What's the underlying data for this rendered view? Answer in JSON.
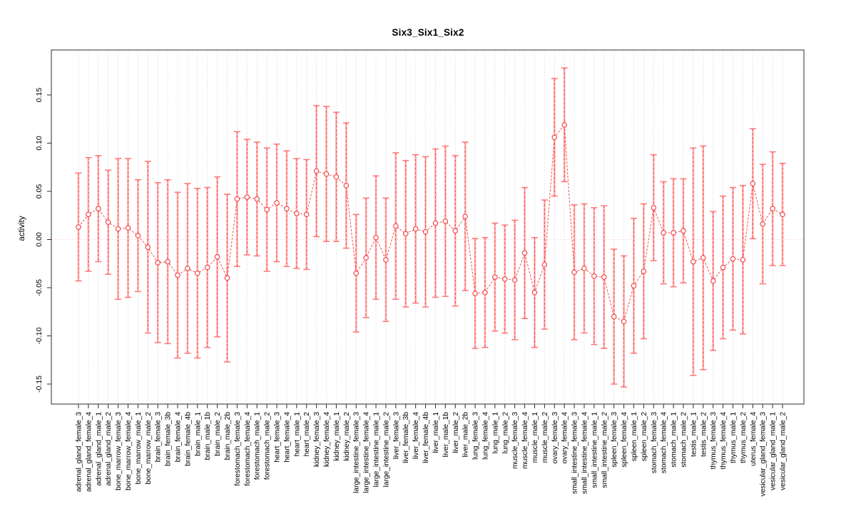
{
  "title": "Six3_Six1_Six2",
  "y_axis_label": "activity",
  "colors": {
    "series": "#f23b3b",
    "connector": "#f55050",
    "error_band": "#ffadad",
    "error_dash": "#f54040",
    "error_cap": "#ff7b7b",
    "zero_line": "#ffbdbd",
    "grid": "#cfcfcf",
    "frame": "#2e2e2e",
    "text": "#000000",
    "background": "#ffffff"
  },
  "chart_data": {
    "type": "line",
    "title": "Six3_Six1_Six2",
    "xlabel": "",
    "ylabel": "activity",
    "ylim": [
      -0.171,
      0.197
    ],
    "y_ticks": [
      -0.15,
      -0.1,
      -0.05,
      0.0,
      0.05,
      0.1,
      0.15
    ],
    "grid": "vertical-dotted",
    "zero_line_dotted": true,
    "point_style": "open-circle",
    "line_style": "dashed-connector",
    "error_bars": "mean ± half-width, whiskers with caps",
    "legend": "none",
    "columns": [
      "label",
      "activity",
      "error_halfwidth"
    ],
    "samples": [
      [
        "adrenal_gland_female_3",
        0.013,
        0.056
      ],
      [
        "adrenal_gland_female_4",
        0.026,
        0.059
      ],
      [
        "adrenal_gland_male_1",
        0.032,
        0.055
      ],
      [
        "adrenal_gland_male_2",
        0.018,
        0.054
      ],
      [
        "bone_marrow_female_3",
        0.011,
        0.073
      ],
      [
        "bone_marrow_female_4",
        0.012,
        0.072
      ],
      [
        "bone_marrow_male_1",
        0.004,
        0.058
      ],
      [
        "bone_marrow_male_2",
        -0.008,
        0.089
      ],
      [
        "brain_female_3",
        -0.024,
        0.083
      ],
      [
        "brain_female_3b",
        -0.023,
        0.085
      ],
      [
        "brain_female_4",
        -0.037,
        0.086
      ],
      [
        "brain_female_4b",
        -0.03,
        0.088
      ],
      [
        "brain_male_1",
        -0.035,
        0.088
      ],
      [
        "brain_male_1b",
        -0.029,
        0.083
      ],
      [
        "brain_male_2",
        -0.018,
        0.083
      ],
      [
        "brain_male_2b",
        -0.04,
        0.087
      ],
      [
        "forestomach_female_3",
        0.042,
        0.07
      ],
      [
        "forestomach_female_4",
        0.044,
        0.06
      ],
      [
        "forestomach_male_1",
        0.042,
        0.059
      ],
      [
        "forestomach_male_2",
        0.031,
        0.064
      ],
      [
        "heart_female_3",
        0.038,
        0.061
      ],
      [
        "heart_female_4",
        0.032,
        0.06
      ],
      [
        "heart_male_1",
        0.027,
        0.057
      ],
      [
        "heart_male_2",
        0.026,
        0.057
      ],
      [
        "kidney_female_3",
        0.071,
        0.068
      ],
      [
        "kidney_female_4",
        0.068,
        0.07
      ],
      [
        "kidney_male_1",
        0.065,
        0.067
      ],
      [
        "kidney_male_2",
        0.056,
        0.065
      ],
      [
        "large_intestine_female_3",
        -0.035,
        0.061
      ],
      [
        "large_intestine_female_4",
        -0.019,
        0.062
      ],
      [
        "large_intestine_male_1",
        0.002,
        0.064
      ],
      [
        "large_intestine_male_2",
        -0.021,
        0.064
      ],
      [
        "liver_female_3",
        0.014,
        0.076
      ],
      [
        "liver_female_3b",
        0.006,
        0.076
      ],
      [
        "liver_female_4",
        0.011,
        0.077
      ],
      [
        "liver_female_4b",
        0.008,
        0.078
      ],
      [
        "liver_male_1",
        0.017,
        0.077
      ],
      [
        "liver_male_1b",
        0.019,
        0.078
      ],
      [
        "liver_male_2",
        0.009,
        0.078
      ],
      [
        "liver_male_2b",
        0.024,
        0.077
      ],
      [
        "lung_female_3",
        -0.056,
        0.057
      ],
      [
        "lung_female_4",
        -0.055,
        0.057
      ],
      [
        "lung_male_1",
        -0.039,
        0.056
      ],
      [
        "lung_male_2",
        -0.041,
        0.056
      ],
      [
        "muscle_female_3",
        -0.042,
        0.062
      ],
      [
        "muscle_female_4",
        -0.014,
        0.068
      ],
      [
        "muscle_male_1",
        -0.055,
        0.057
      ],
      [
        "muscle_male_2",
        -0.026,
        0.067
      ],
      [
        "ovary_female_3",
        0.106,
        0.061
      ],
      [
        "ovary_female_4",
        0.119,
        0.059
      ],
      [
        "small_intestine_female_3",
        -0.034,
        0.07
      ],
      [
        "small_intestine_female_4",
        -0.03,
        0.067
      ],
      [
        "small_intestine_male_1",
        -0.038,
        0.071
      ],
      [
        "small_intestine_male_2",
        -0.039,
        0.074
      ],
      [
        "spleen_female_3",
        -0.08,
        0.07
      ],
      [
        "spleen_female_4",
        -0.085,
        0.068
      ],
      [
        "spleen_male_1",
        -0.048,
        0.07
      ],
      [
        "spleen_male_2",
        -0.033,
        0.07
      ],
      [
        "stomach_female_3",
        0.033,
        0.055
      ],
      [
        "stomach_female_4",
        0.007,
        0.053
      ],
      [
        "stomach_male_1",
        0.007,
        0.056
      ],
      [
        "stomach_male_2",
        0.009,
        0.054
      ],
      [
        "testis_male_1",
        -0.023,
        0.118
      ],
      [
        "testis_male_2",
        -0.019,
        0.116
      ],
      [
        "thymus_female_3",
        -0.043,
        0.072
      ],
      [
        "thymus_female_4",
        -0.029,
        0.074
      ],
      [
        "thymus_male_1",
        -0.02,
        0.074
      ],
      [
        "thymus_male_2",
        -0.021,
        0.077
      ],
      [
        "uterus_female_4",
        0.058,
        0.057
      ],
      [
        "vesicular_gland_female_3",
        0.016,
        0.062
      ],
      [
        "vesicular_gland_male_1",
        0.032,
        0.059
      ],
      [
        "vesicular_gland_male_2",
        0.026,
        0.053
      ]
    ]
  }
}
